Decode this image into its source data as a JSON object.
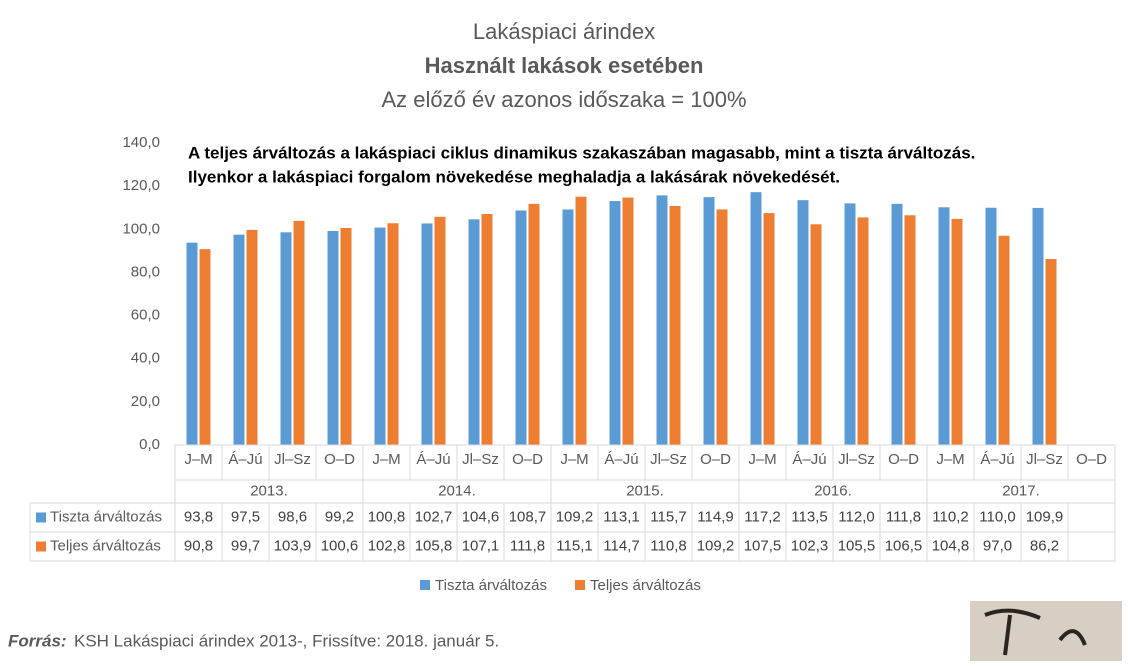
{
  "chart_data": {
    "type": "bar",
    "title": "Lakáspiaci árindex",
    "subtitle": "Használt lakások esetében",
    "subtitle2": "Az előző év azonos időszaka = 100%",
    "annotation": [
      "A teljes árváltozás  a lakáspiaci ciklus dinamikus szakaszában magasabb, mint a tiszta árváltozás.",
      "Ilyenkor a lakáspiaci forgalom növekedése meghaladja a lakásárak növekedését."
    ],
    "categories": [
      "J–M",
      "Á–Jú",
      "Jl–Sz",
      "O–D",
      "J–M",
      "Á–Jú",
      "Jl–Sz",
      "O–D",
      "J–M",
      "Á–Jú",
      "Jl–Sz",
      "O–D",
      "J–M",
      "Á–Jú",
      "Jl–Sz",
      "O–D",
      "J–M",
      "Á–Jú",
      "Jl–Sz",
      "O–D"
    ],
    "groups": [
      "2013.",
      "2014.",
      "2015.",
      "2016.",
      "2017."
    ],
    "series": [
      {
        "name": "Tiszta árváltozás",
        "color": "#5b9bd5",
        "values": [
          93.8,
          97.5,
          98.6,
          99.2,
          100.8,
          102.7,
          104.6,
          108.7,
          109.2,
          113.1,
          115.7,
          114.9,
          117.2,
          113.5,
          112.0,
          111.8,
          110.2,
          110.0,
          109.9,
          null
        ],
        "value_labels": [
          "93,8",
          "97,5",
          "98,6",
          "99,2",
          "100,8",
          "102,7",
          "104,6",
          "108,7",
          "109,2",
          "113,1",
          "115,7",
          "114,9",
          "117,2",
          "113,5",
          "112,0",
          "111,8",
          "110,2",
          "110,0",
          "109,9",
          null
        ]
      },
      {
        "name": "Teljes árváltozás",
        "color": "#ed7d31",
        "values": [
          90.8,
          99.7,
          103.9,
          100.6,
          102.8,
          105.8,
          107.1,
          111.8,
          115.1,
          114.7,
          110.8,
          109.2,
          107.5,
          102.3,
          105.5,
          106.5,
          104.8,
          97.0,
          86.2,
          null
        ],
        "value_labels": [
          "90,8",
          "99,7",
          "103,9",
          "100,6",
          "102,8",
          "105,8",
          "107,1",
          "111,8",
          "115,1",
          "114,7",
          "110,8",
          "109,2",
          "107,5",
          "102,3",
          "105,5",
          "106,5",
          "104,8",
          "97,0",
          "86,2",
          null
        ]
      }
    ],
    "ylim": [
      0,
      140
    ],
    "yticks": [
      {
        "value": 0,
        "label": "0,0"
      },
      {
        "value": 20,
        "label": "20,0"
      },
      {
        "value": 40,
        "label": "40,0"
      },
      {
        "value": 60,
        "label": "60,0"
      },
      {
        "value": 80,
        "label": "80,0"
      },
      {
        "value": 100,
        "label": "100,0"
      },
      {
        "value": 120,
        "label": "120,0"
      },
      {
        "value": 140,
        "label": "140,0"
      }
    ],
    "grid": false,
    "source_label": "Forrás:",
    "source_text": "KSH Lakáspiaci árindex 2013-, Frissítve: 2018. január 5."
  }
}
